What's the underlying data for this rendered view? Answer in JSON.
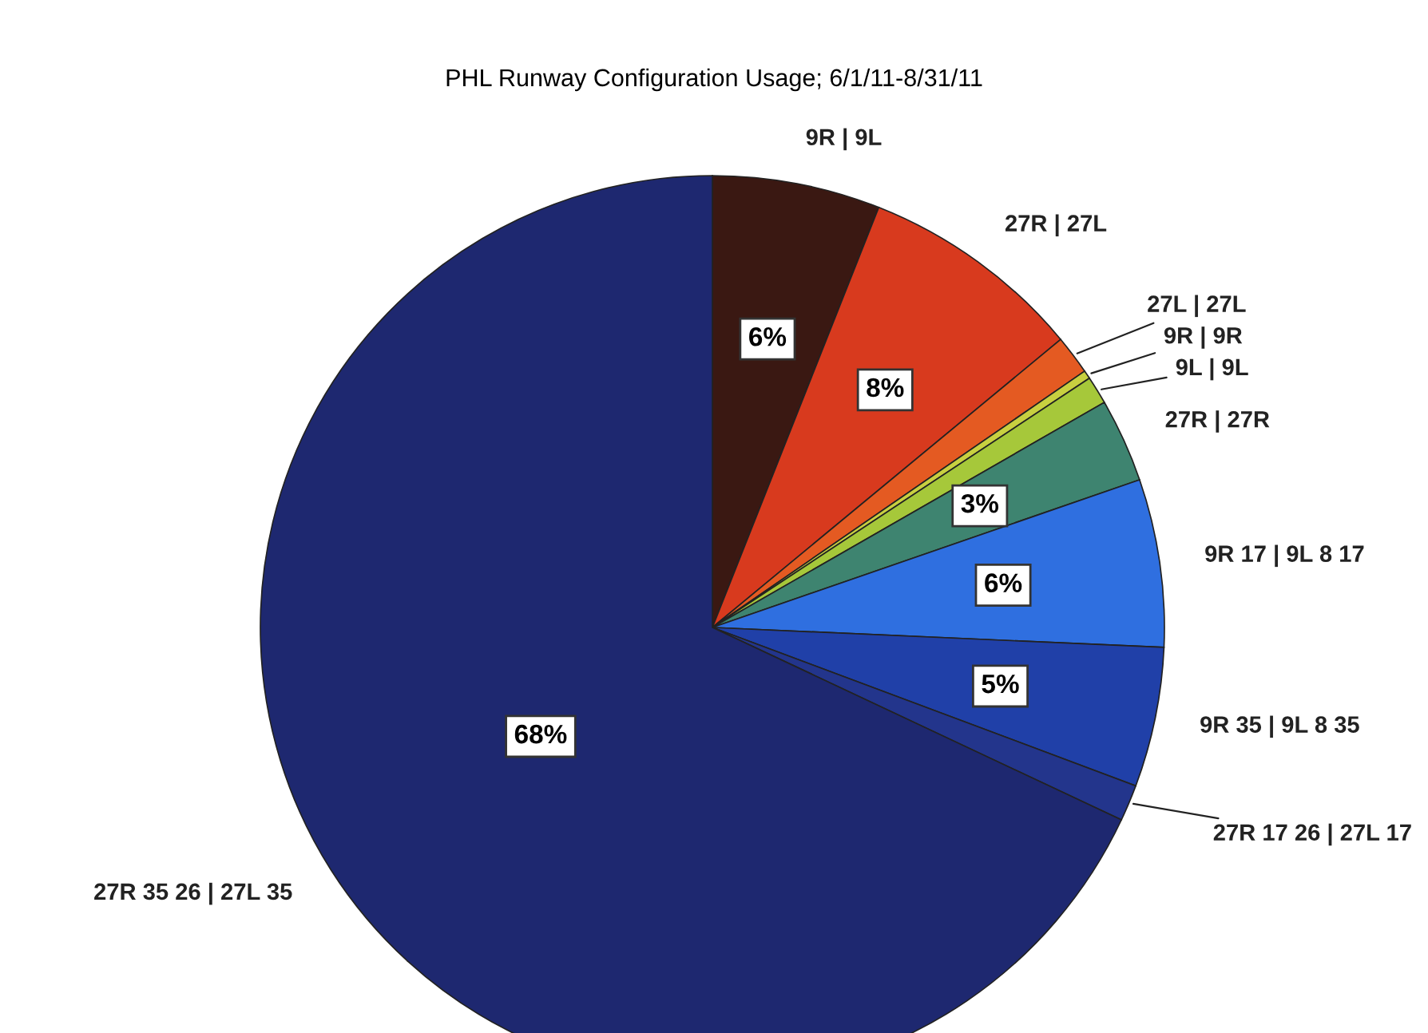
{
  "chart_data": {
    "type": "pie",
    "title": "PHL Runway Configuration Usage; 6/1/11-8/31/11",
    "categories": [
      "9R | 9L",
      "27R | 27L",
      "27L | 27L",
      "9R | 9R",
      "9L | 9L",
      "27R | 27R",
      "9R 17 | 9L 8 17",
      "9R 35 | 9L 8 35",
      "27R 17 26 | 27L 17",
      "27R 35 26 | 27L 35"
    ],
    "values": [
      6,
      8,
      1.4,
      0.3,
      1.0,
      3,
      6,
      5,
      1.3,
      68
    ],
    "value_labels": [
      "6%",
      "8%",
      null,
      null,
      null,
      "3%",
      "6%",
      "5%",
      null,
      "68%"
    ],
    "colors": [
      "#3a1812",
      "#d83a1e",
      "#e45a22",
      "#c8d040",
      "#a6c83a",
      "#3e8470",
      "#2f6fe0",
      "#2040a8",
      "#23358c",
      "#1e2870"
    ],
    "legend": false
  }
}
